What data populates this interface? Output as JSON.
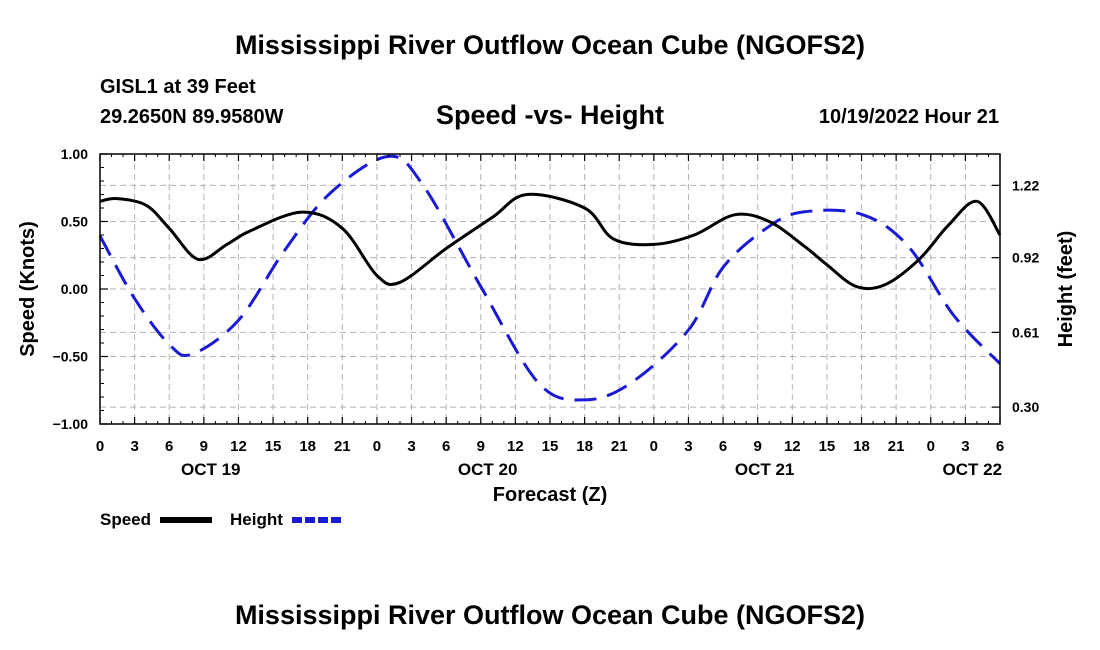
{
  "header": {
    "title": "Mississippi River Outflow Ocean Cube (NGOFS2)",
    "station": "GISL1 at 39 Feet",
    "coordinates": "29.2650N  89.9580W",
    "subtitle": "Speed -vs- Height",
    "datetime": "10/19/2022 Hour 21"
  },
  "footer": {
    "title": "Mississippi River Outflow Ocean Cube (NGOFS2)"
  },
  "chart_data": {
    "type": "line",
    "title": "Speed -vs- Height",
    "xlabel": "Forecast (Z)",
    "ylabel": "Speed (Knots)",
    "y2label": "Height (feet)",
    "x_unit": "hours since OCT 19 00Z",
    "xlim": [
      0,
      78
    ],
    "ylim": [
      -1.0,
      1.0
    ],
    "y2lim": [
      0.23,
      1.35
    ],
    "grid": true,
    "x_ticks": [
      0,
      3,
      6,
      9,
      12,
      15,
      18,
      21,
      24,
      27,
      30,
      33,
      36,
      39,
      42,
      45,
      48,
      51,
      54,
      57,
      60,
      63,
      66,
      69,
      72,
      75,
      78
    ],
    "x_tick_labels": [
      "0",
      "3",
      "6",
      "9",
      "12",
      "15",
      "18",
      "21",
      "0",
      "3",
      "6",
      "9",
      "12",
      "15",
      "18",
      "21",
      "0",
      "3",
      "6",
      "9",
      "12",
      "15",
      "18",
      "21",
      "0",
      "3",
      "6"
    ],
    "date_labels": [
      {
        "x": 9.6,
        "label": "OCT 19"
      },
      {
        "x": 33.6,
        "label": "OCT 20"
      },
      {
        "x": 57.6,
        "label": "OCT 21"
      },
      {
        "x": 75.6,
        "label": "OCT 22"
      }
    ],
    "y_ticks": [
      -1.0,
      -0.5,
      0.0,
      0.5,
      1.0
    ],
    "y_tick_labels": [
      "−1.00",
      "−0.50",
      "0.00",
      "0.50",
      "1.00"
    ],
    "y2_ticks": [
      0.3,
      0.61,
      0.92,
      1.22
    ],
    "y2_tick_labels": [
      "0.30",
      "0.61",
      "0.92",
      "1.22"
    ],
    "legend": [
      {
        "name": "Speed",
        "color": "#000000",
        "style": "solid"
      },
      {
        "name": "Height",
        "color": "#1a1ad6",
        "style": "dashed"
      }
    ],
    "series": [
      {
        "name": "Speed",
        "axis": "left",
        "color": "#000000",
        "style": "solid",
        "x": [
          0,
          1.5,
          4,
          6,
          8.5,
          11,
          13,
          17.5,
          21,
          24,
          26,
          30,
          34,
          37,
          42,
          44.5,
          48,
          51.5,
          55,
          58,
          61,
          63,
          65.5,
          68,
          71,
          73.5,
          76,
          78
        ],
        "values": [
          0.65,
          0.67,
          0.62,
          0.45,
          0.22,
          0.33,
          0.43,
          0.57,
          0.45,
          0.1,
          0.05,
          0.3,
          0.53,
          0.7,
          0.6,
          0.37,
          0.33,
          0.4,
          0.55,
          0.5,
          0.32,
          0.18,
          0.02,
          0.03,
          0.22,
          0.47,
          0.65,
          0.4
        ]
      },
      {
        "name": "Height",
        "axis": "right",
        "color": "#1a1ad6",
        "style": "dashed",
        "x": [
          0,
          3,
          6,
          8,
          12,
          16,
          20,
          25,
          28,
          33,
          38,
          42,
          46,
          51,
          54,
          58,
          61,
          66,
          70,
          74,
          78
        ],
        "values": [
          1.01,
          0.75,
          0.56,
          0.52,
          0.66,
          0.95,
          1.19,
          1.34,
          1.22,
          0.8,
          0.4,
          0.33,
          0.4,
          0.62,
          0.88,
          1.05,
          1.11,
          1.1,
          0.97,
          0.68,
          0.48
        ]
      }
    ]
  }
}
